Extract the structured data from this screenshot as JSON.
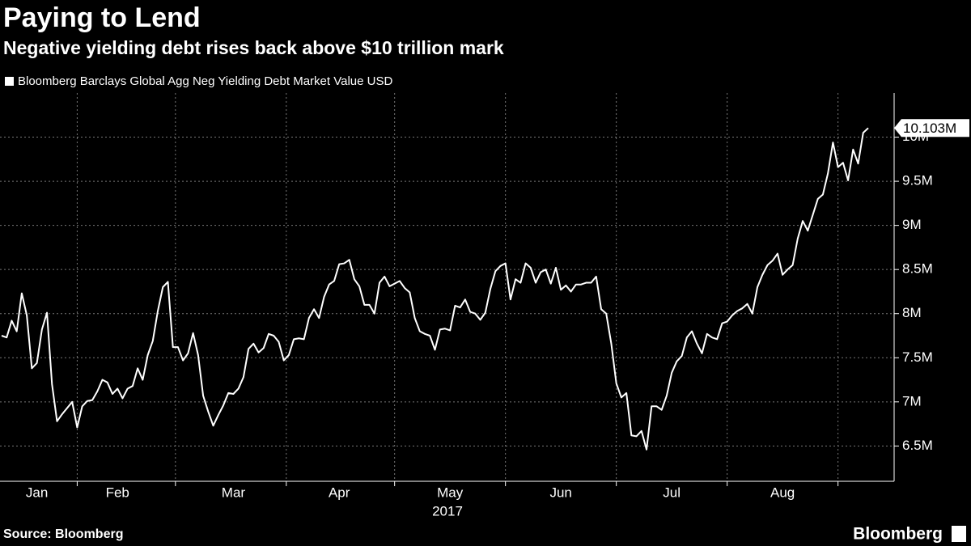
{
  "chart_data": {
    "type": "line",
    "title": "Paying to Lend",
    "subtitle": "Negative yielding debt rises back above $10 trillion mark",
    "source": "Source: Bloomberg",
    "brand": "Bloomberg",
    "xlabel": "2017",
    "last_label": "10.103M",
    "grid": true,
    "legend": "top-left",
    "categories": [
      null,
      null,
      null,
      null,
      null,
      null,
      null,
      "Jan",
      null,
      null,
      null,
      null,
      null,
      null,
      null,
      null,
      null,
      null,
      null,
      null,
      null,
      null,
      null,
      "Feb",
      null,
      null,
      null,
      null,
      null,
      null,
      null,
      null,
      null,
      null,
      null,
      null,
      null,
      null,
      null,
      null,
      null,
      null,
      null,
      null,
      null,
      null,
      "Mar",
      null,
      null,
      null,
      null,
      null,
      null,
      null,
      null,
      null,
      null,
      null,
      null,
      null,
      null,
      null,
      null,
      null,
      null,
      null,
      null,
      "Apr",
      null,
      null,
      null,
      null,
      null,
      null,
      null,
      null,
      null,
      null,
      null,
      null,
      null,
      null,
      null,
      null,
      null,
      null,
      null,
      null,
      null,
      "May",
      null,
      null,
      null,
      null,
      null,
      null,
      null,
      null,
      null,
      null,
      null,
      null,
      null,
      null,
      null,
      null,
      null,
      null,
      null,
      null,
      null,
      "Jun",
      null,
      null,
      null,
      null,
      null,
      null,
      null,
      null,
      null,
      null,
      null,
      null,
      null,
      null,
      null,
      null,
      null,
      null,
      null,
      null,
      null,
      "Jul",
      null,
      null,
      null,
      null,
      null,
      null,
      null,
      null,
      null,
      null,
      null,
      null,
      null,
      null,
      null,
      null,
      null,
      null,
      null,
      null,
      null,
      "Aug",
      null,
      null,
      null,
      null,
      null,
      null,
      null,
      null,
      null,
      null,
      null,
      null,
      null,
      null,
      null,
      null,
      null
    ],
    "series": [
      {
        "name": "Bloomberg Barclays Global Agg Neg Yielding Debt Market Value USD",
        "color": "#ffffff",
        "values": [
          7.75,
          7.73,
          7.92,
          7.8,
          8.23,
          7.98,
          7.38,
          7.44,
          7.82,
          8.01,
          7.2,
          6.78,
          6.86,
          6.93,
          7.0,
          6.71,
          6.95,
          7.01,
          7.02,
          7.12,
          7.25,
          7.22,
          7.09,
          7.15,
          7.04,
          7.15,
          7.18,
          7.38,
          7.25,
          7.53,
          7.69,
          8.03,
          8.3,
          8.36,
          7.62,
          7.62,
          7.47,
          7.55,
          7.78,
          7.53,
          7.07,
          6.89,
          6.73,
          6.85,
          6.96,
          7.1,
          7.09,
          7.15,
          7.28,
          7.6,
          7.66,
          7.56,
          7.61,
          7.77,
          7.75,
          7.68,
          7.47,
          7.53,
          7.71,
          7.72,
          7.71,
          7.95,
          8.05,
          7.95,
          8.19,
          8.33,
          8.37,
          8.56,
          8.57,
          8.61,
          8.39,
          8.31,
          8.1,
          8.1,
          8.0,
          8.35,
          8.42,
          8.31,
          8.34,
          8.37,
          8.29,
          8.24,
          7.95,
          7.8,
          7.77,
          7.75,
          7.59,
          7.82,
          7.83,
          7.81,
          8.09,
          8.07,
          8.16,
          8.02,
          8.0,
          7.93,
          8.01,
          8.28,
          8.48,
          8.54,
          8.57,
          8.16,
          8.39,
          8.35,
          8.57,
          8.52,
          8.35,
          8.47,
          8.5,
          8.34,
          8.52,
          8.27,
          8.32,
          8.25,
          8.33,
          8.33,
          8.35,
          8.35,
          8.42,
          8.05,
          8.0,
          7.66,
          7.21,
          7.05,
          7.1,
          6.62,
          6.61,
          6.67,
          6.46,
          6.95,
          6.95,
          6.91,
          7.07,
          7.33,
          7.46,
          7.52,
          7.73,
          7.8,
          7.66,
          7.55,
          7.77,
          7.73,
          7.71,
          7.89,
          7.91,
          7.98,
          8.03,
          8.06,
          8.11,
          8.0,
          8.3,
          8.44,
          8.55,
          8.6,
          8.68,
          8.44,
          8.5,
          8.55,
          8.85,
          9.05,
          8.94,
          9.12,
          9.3,
          9.35,
          9.59,
          9.94,
          9.66,
          9.71,
          9.51,
          9.86,
          9.7,
          10.05,
          10.103
        ]
      }
    ],
    "ylim": [
      6.1,
      10.5
    ],
    "yticks": [
      {
        "value": 6.5,
        "label": "6.5M"
      },
      {
        "value": 7,
        "label": "7M"
      },
      {
        "value": 7.5,
        "label": "7.5M"
      },
      {
        "value": 8,
        "label": "8M"
      },
      {
        "value": 8.5,
        "label": "8.5M"
      },
      {
        "value": 9,
        "label": "9M"
      },
      {
        "value": 9.5,
        "label": "9.5M"
      },
      {
        "value": 10,
        "label": "10M"
      }
    ]
  }
}
